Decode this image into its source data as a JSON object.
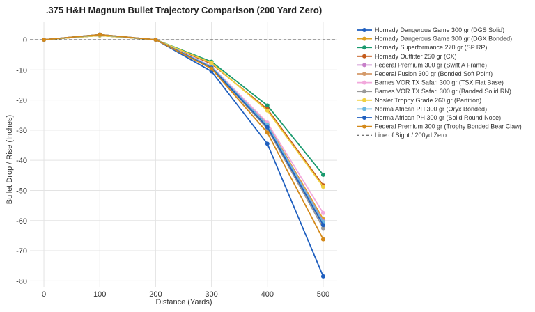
{
  "chart_data": {
    "type": "line",
    "title": ".375 H&H Magnum Bullet Trajectory Comparison (200 Yard Zero)",
    "xlabel": "Distance (Yards)",
    "ylabel": "Bullet Drop / Rise (Inches)",
    "x": [
      0,
      100,
      200,
      300,
      400,
      500
    ],
    "xlim": [
      -25,
      525
    ],
    "ylim": [
      -82,
      6
    ],
    "xticks": [
      0,
      100,
      200,
      300,
      400,
      500
    ],
    "yticks": [
      0,
      -10,
      -20,
      -30,
      -40,
      -50,
      -60,
      -70,
      -80
    ],
    "grid": true,
    "legend_position": "outside-right",
    "series": [
      {
        "name": "Hornady Dangerous Game 300 gr (DGS Solid)",
        "color": "#1f5fbf",
        "values": [
          0,
          1.7,
          0,
          -10.5,
          -34.5,
          -78.5
        ]
      },
      {
        "name": "Hornady Dangerous Game 300 gr (DGX Bonded)",
        "color": "#e0a020",
        "values": [
          0,
          1.6,
          0,
          -9.0,
          -28.0,
          -59.5
        ]
      },
      {
        "name": "Hornady Superformance 270 gr (SP RP)",
        "color": "#1a9a6e",
        "values": [
          0,
          1.4,
          0,
          -7.3,
          -21.8,
          -44.8
        ]
      },
      {
        "name": "Hornady Outfitter 250 gr (CX)",
        "color": "#c45a1a",
        "values": [
          0,
          1.4,
          0,
          -8.0,
          -23.0,
          -48.3
        ]
      },
      {
        "name": "Federal Premium 300 gr (Swift A Frame)",
        "color": "#c77fc9",
        "values": [
          0,
          1.6,
          0,
          -9.0,
          -28.2,
          -60.2
        ]
      },
      {
        "name": "Federal Fusion 300 gr (Bonded Soft Point)",
        "color": "#d49a6a",
        "values": [
          0,
          1.6,
          0,
          -9.1,
          -28.5,
          -61.0
        ]
      },
      {
        "name": "Barnes VOR TX Safari 300 gr (TSX Flat Base)",
        "color": "#f2a8dc",
        "values": [
          0,
          1.6,
          0,
          -8.8,
          -27.5,
          -57.5
        ]
      },
      {
        "name": "Barnes VOR TX Safari 300 gr (Banded Solid RN)",
        "color": "#999999",
        "values": [
          0,
          1.7,
          0,
          -9.4,
          -29.5,
          -62.5
        ]
      },
      {
        "name": "Nosler Trophy Grade 260 gr (Partition)",
        "color": "#f0d040",
        "values": [
          0,
          1.4,
          0,
          -7.7,
          -23.5,
          -48.8
        ]
      },
      {
        "name": "Norma African PH 300 gr (Oryx Bonded)",
        "color": "#6ab8e0",
        "values": [
          0,
          1.6,
          0,
          -9.0,
          -28.3,
          -60.5
        ]
      },
      {
        "name": "Norma African PH 300 gr (Solid Round Nose)",
        "color": "#1f5fbf",
        "values": [
          0,
          1.7,
          0,
          -9.3,
          -29.0,
          -61.5
        ]
      },
      {
        "name": "Federal Premium 300 gr (Trophy Bonded Bear Claw)",
        "color": "#d4891a",
        "values": [
          0,
          1.7,
          0,
          -9.6,
          -30.8,
          -66.2
        ]
      }
    ],
    "reference_line": {
      "name": "Line of Sight / 200yd Zero",
      "value": 0,
      "style": "dashed",
      "color": "#444444"
    }
  }
}
